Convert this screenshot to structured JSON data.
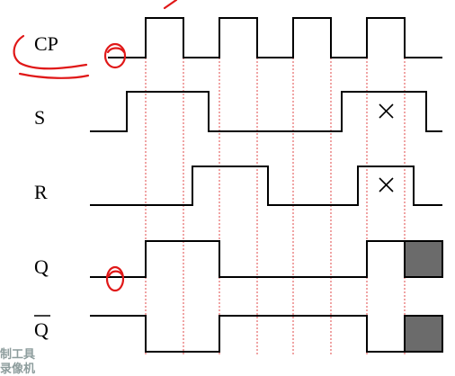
{
  "signals": [
    {
      "label": "CP"
    },
    {
      "label": "S"
    },
    {
      "label": "R"
    },
    {
      "label": "Q"
    },
    {
      "label": "Q",
      "overline": true
    }
  ],
  "marks": {
    "s_dont_care": "×",
    "r_dont_care": "×"
  },
  "annotations": {
    "cp_zero": "0",
    "q_zero": "0"
  },
  "watermark": {
    "line1": "制工具",
    "line2": "录像机"
  },
  "colors": {
    "waveform": "#000000",
    "guide_lines": "#e04a4a",
    "annotation_ink": "#e01818",
    "undefined_state": "#6b6b6b"
  }
}
